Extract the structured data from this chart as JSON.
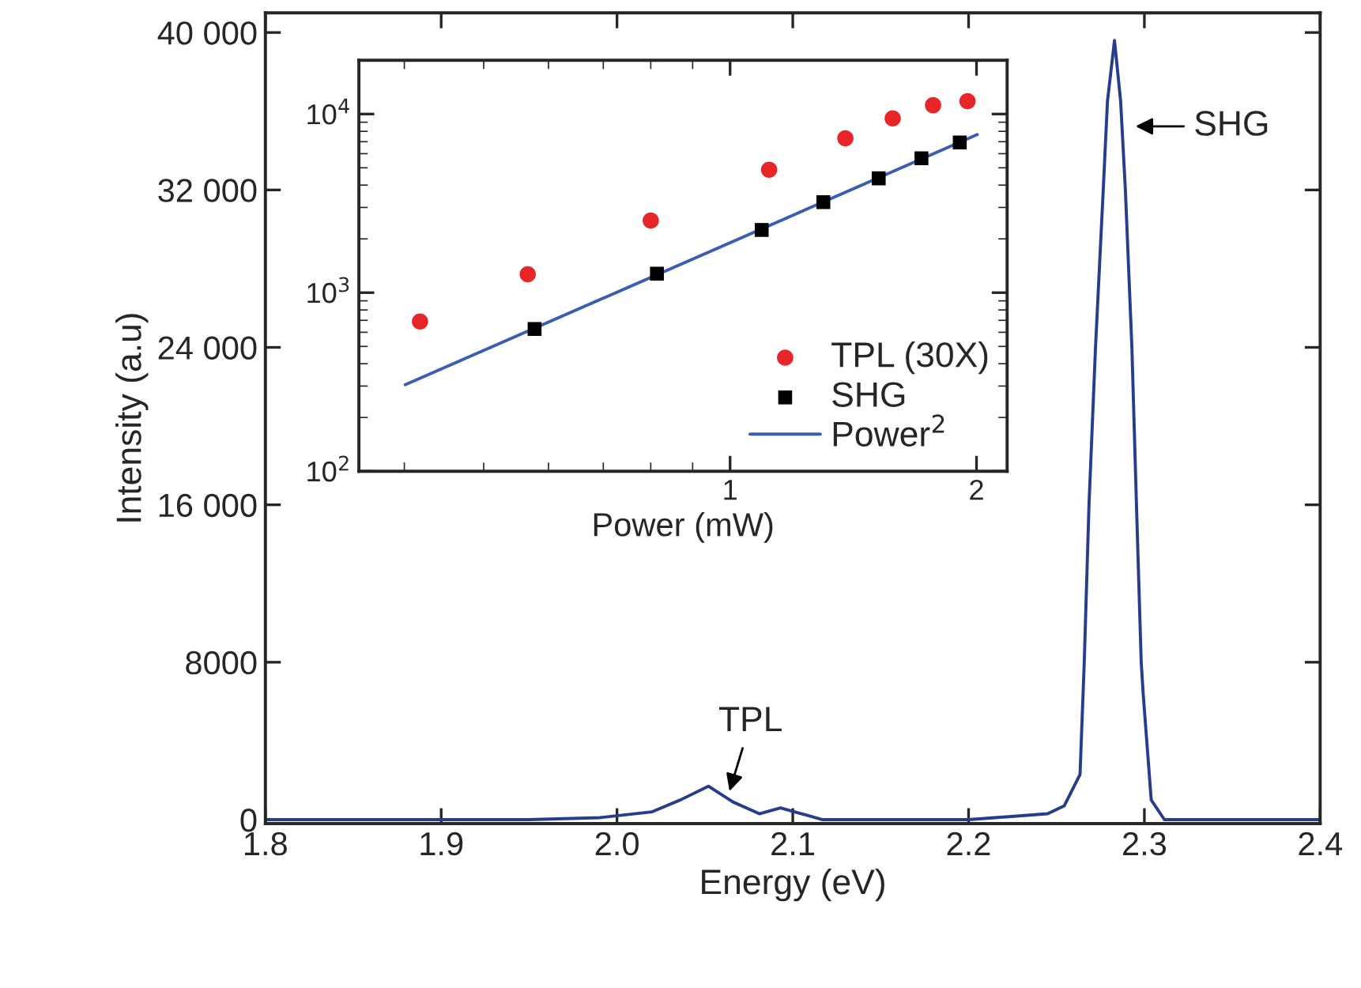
{
  "chart_data": [
    {
      "type": "line",
      "xlabel": "Energy (eV)",
      "ylabel": "Intensity (a.u)",
      "xlim": [
        1.8,
        2.4
      ],
      "xticks": [
        1.8,
        1.9,
        {
          "value": 2.0,
          "label": "2.0"
        },
        2.1,
        2.2,
        2.3,
        2.4
      ],
      "ylim": [
        -200,
        41000
      ],
      "yticks": [
        0,
        8000,
        {
          "value": 16000,
          "label": "16 000"
        },
        {
          "value": 24000,
          "label": "24 000"
        },
        {
          "value": 32000,
          "label": "32 000"
        },
        {
          "value": 40000,
          "label": "40 000"
        }
      ],
      "grid": false,
      "legend": false,
      "marker": "none",
      "line_style": "solid",
      "series": [
        {
          "color": "#283c8c",
          "x": [
            1.8,
            1.9,
            1.95,
            1.99,
            2.02,
            2.036,
            2.052,
            2.066,
            2.081,
            2.093,
            2.105,
            2.117,
            2.2,
            2.245,
            2.2544,
            2.2634,
            2.2658,
            2.2685,
            2.2722,
            2.2766,
            2.279,
            2.283,
            2.2865,
            2.2892,
            2.2929,
            2.2955,
            2.2982,
            2.2994,
            2.3039,
            2.3114,
            2.4
          ],
          "values": [
            0,
            0,
            0,
            100,
            400,
            1000,
            1700,
            900,
            300,
            600,
            300,
            0,
            0,
            300,
            700,
            2300,
            8000,
            16000,
            24000,
            32000,
            36500,
            39600,
            36500,
            32000,
            24000,
            16000,
            8000,
            6300,
            1000,
            0,
            0
          ]
        }
      ],
      "annotations": [
        "TPL",
        "SHG"
      ]
    },
    {
      "type": "scatter",
      "xlabel": "Power (mW)",
      "log": "xy",
      "xlim": [
        0.352,
        2.18
      ],
      "xticks": [
        1,
        2
      ],
      "ylim": [
        100,
        20000
      ],
      "yticks": [
        {
          "value": 100,
          "label": "10$^{2}$"
        },
        {
          "value": 1000,
          "label": "10$^{3}$"
        },
        {
          "value": 10000,
          "label": "10$^{4}$"
        }
      ],
      "grid": false,
      "legend": "bottom right",
      "series": [
        {
          "name": "TPL (30X)",
          "type": "scatter",
          "marker": "circle",
          "color": "#e8262a",
          "x": [
            0.418,
            0.566,
            0.8,
            1.116,
            1.383,
            1.58,
            1.77,
            1.95
          ],
          "values": [
            689,
            1268,
            2535,
            4875,
            7310,
            9460,
            11200,
            11800
          ]
        },
        {
          "name": "SHG",
          "type": "scatter",
          "marker": "square",
          "color": "#000000",
          "x": [
            0.577,
            0.814,
            1.093,
            1.3,
            1.519,
            1.713,
            1.908
          ],
          "values": [
            626,
            1277,
            2244,
            3213,
            4365,
            5650,
            6930
          ]
        },
        {
          "name": "Power$^{2}$",
          "type": "line",
          "marker": "none",
          "line_style": "solid",
          "color": "#3a5fb0",
          "x": [
            0.401,
            2.004
          ],
          "values": [
            305,
            7670
          ]
        }
      ]
    }
  ]
}
